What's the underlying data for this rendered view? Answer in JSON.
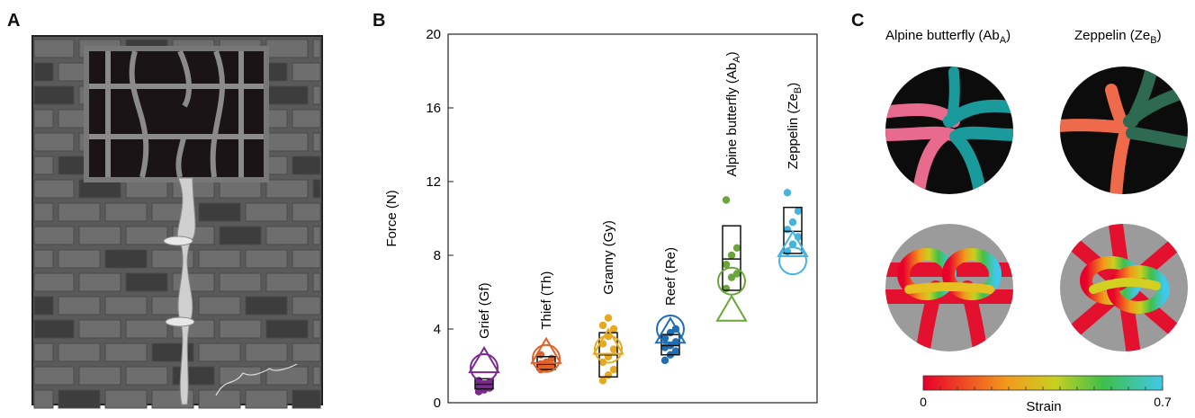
{
  "panels": {
    "a": {
      "letter": "A"
    },
    "b": {
      "letter": "B"
    },
    "c": {
      "letter": "C"
    }
  },
  "chart_data": {
    "type": "scatter",
    "ylabel": "Force (N)",
    "ylim": [
      0,
      20
    ],
    "yticks": [
      0,
      4,
      8,
      12,
      16,
      20
    ],
    "categories": [
      "Grief (Gf)",
      "Thief (Th)",
      "Granny (Gy)",
      "Reef (Re)",
      "Alpine butterfly (Ab_A)",
      "Zeppelin (Ze_B)"
    ],
    "colors": [
      "#7b2a8f",
      "#e0622a",
      "#e6a91f",
      "#1f6fb5",
      "#6aa63a",
      "#45b5e0"
    ],
    "groups": [
      {
        "points": [
          0.6,
          0.7,
          0.8,
          0.9,
          1.0,
          1.1,
          1.2
        ],
        "box": [
          0.75,
          1.3
        ],
        "median": 1.0,
        "triangle": 2.2,
        "circle": 1.9
      },
      {
        "points": [
          1.8,
          1.9,
          2.0,
          2.1,
          2.2,
          2.4,
          2.6
        ],
        "box": [
          1.8,
          2.5
        ],
        "median": 2.1,
        "triangle": 2.7,
        "circle": 2.4
      },
      {
        "points": [
          1.2,
          1.5,
          1.8,
          2.2,
          2.5,
          2.9,
          3.2,
          3.6,
          4.0,
          4.2,
          4.6
        ],
        "box": [
          1.4,
          3.8
        ],
        "median": 2.6,
        "triangle": 3.2,
        "circle": 2.9
      },
      {
        "points": [
          2.3,
          2.6,
          2.8,
          3.0,
          3.1,
          3.3,
          3.5,
          3.8,
          4.0
        ],
        "box": [
          2.6,
          3.7
        ],
        "median": 3.1,
        "triangle": 3.8,
        "circle": 4.0
      },
      {
        "points": [
          6.2,
          6.8,
          7.0,
          7.5,
          8.0,
          8.4,
          11.0
        ],
        "box": [
          6.1,
          9.6
        ],
        "median": 7.8,
        "triangle": 5.0,
        "circle": 6.6
      },
      {
        "points": [
          8.2,
          8.6,
          9.0,
          9.4,
          9.8,
          10.4,
          11.4
        ],
        "box": [
          8.1,
          10.6
        ],
        "median": 9.3,
        "triangle": 8.5,
        "circle": 7.7
      }
    ]
  },
  "panel_c": {
    "knot_titles": [
      "Alpine butterfly (Ab",
      "Zeppelin (Ze"
    ],
    "knot_subscripts": [
      "A",
      "B"
    ],
    "colorbar": {
      "min_label": "0",
      "max_label": "0.7",
      "label": "Strain"
    }
  }
}
